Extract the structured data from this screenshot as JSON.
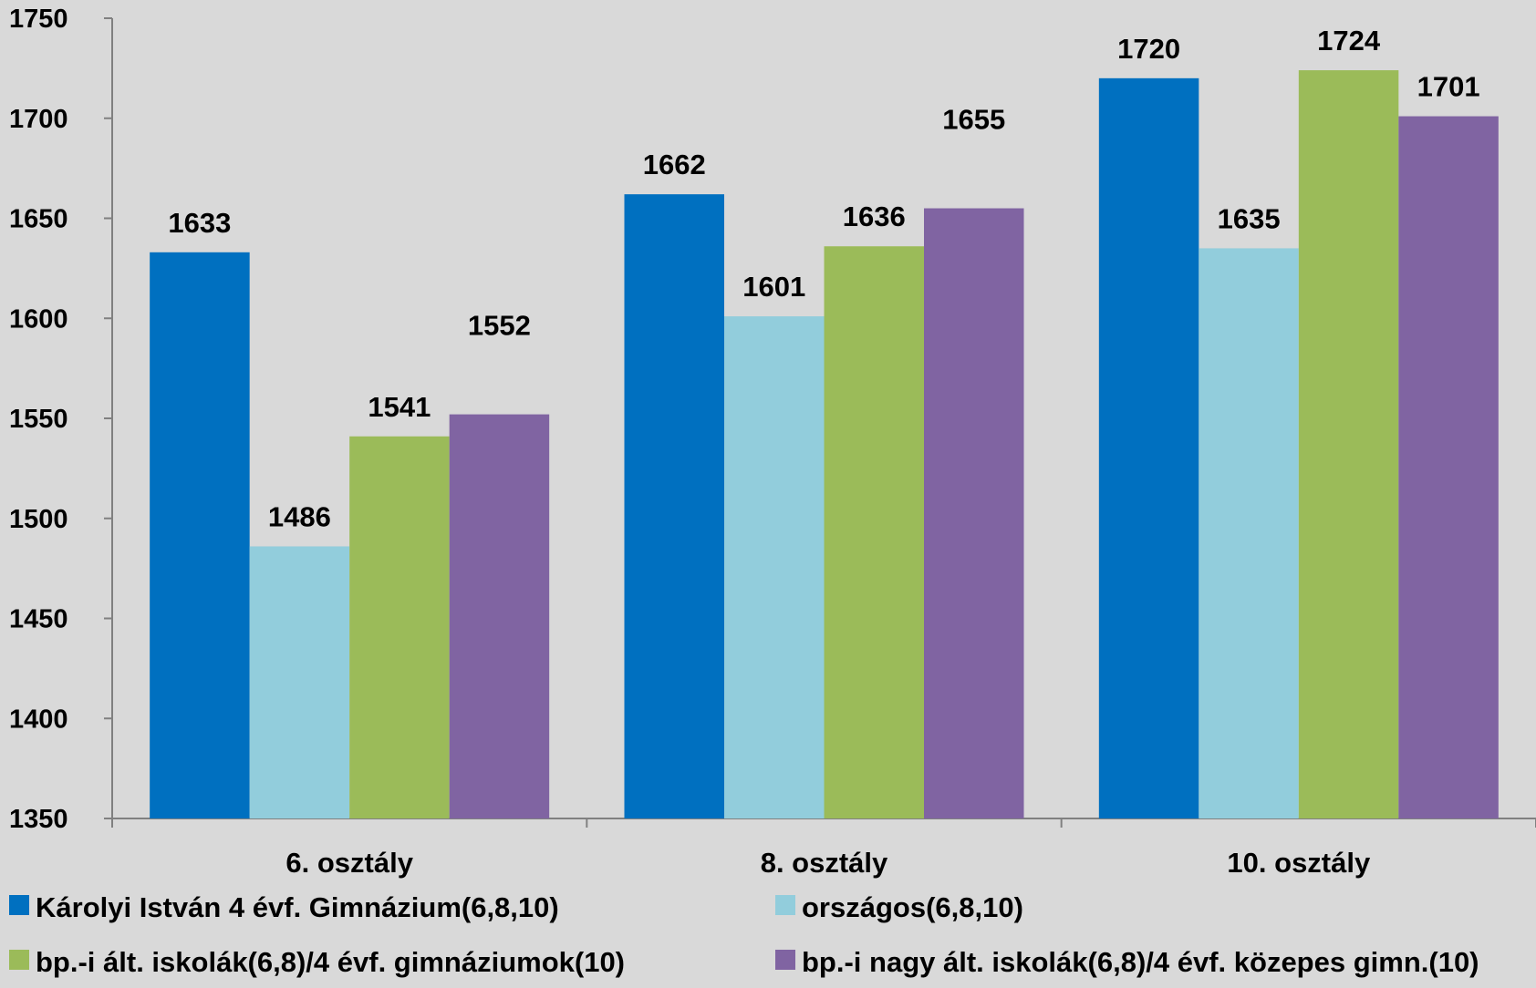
{
  "chart_data": {
    "type": "bar",
    "categories": [
      "6. osztály",
      "8. osztály",
      "10. osztály"
    ],
    "series": [
      {
        "name": "Károlyi István 4 évf. Gimnázium(6,8,10)",
        "color": "#0070c0",
        "values": [
          1633,
          1662,
          1720
        ]
      },
      {
        "name": "országos(6,8,10)",
        "color": "#92cddc",
        "values": [
          1486,
          1601,
          1635
        ]
      },
      {
        "name": "bp.-i ált. iskolák(6,8)/4 évf. gimnáziumok(10)",
        "color": "#9bbb59",
        "values": [
          1541,
          1636,
          1724
        ]
      },
      {
        "name": "bp.-i nagy ált. iskolák(6,8)/4 évf. közepes gimn.(10)",
        "color": "#8064a2",
        "values": [
          1552,
          1655,
          1701
        ]
      }
    ],
    "yticks": [
      "1350",
      "1400",
      "1450",
      "1500",
      "1550",
      "1600",
      "1650",
      "1700",
      "1750"
    ],
    "ylim": [
      1350,
      1750
    ],
    "grid": false,
    "legend": "bottom",
    "title": "",
    "xlabel": "",
    "ylabel": ""
  }
}
